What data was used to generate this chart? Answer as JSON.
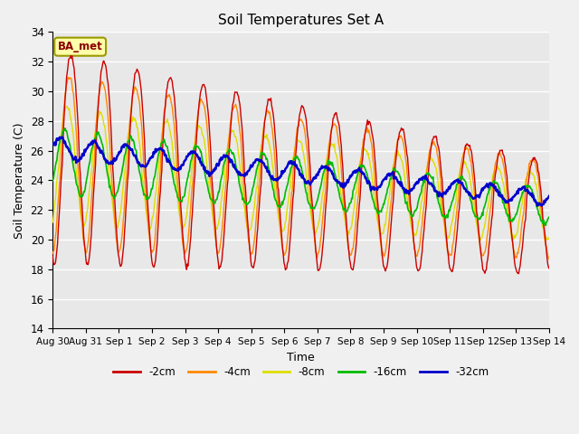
{
  "title": "Soil Temperatures Set A",
  "xlabel": "Time",
  "ylabel": "Soil Temperature (C)",
  "ylim": [
    14,
    34
  ],
  "legend_label": "BA_met",
  "plot_bg_color": "#e8e8e8",
  "fig_bg_color": "#f0f0f0",
  "line_colors": {
    "-2cm": "#cc0000",
    "-4cm": "#ff8800",
    "-8cm": "#dddd00",
    "-16cm": "#00bb00",
    "-32cm": "#0000cc"
  },
  "x_tick_labels": [
    "Aug 30",
    "Aug 31",
    "Sep 1",
    "Sep 2",
    "Sep 3",
    "Sep 4",
    "Sep 5",
    "Sep 6",
    "Sep 7",
    "Sep 8",
    "Sep 9",
    "Sep 10",
    "Sep 11",
    "Sep 12",
    "Sep 13",
    "Sep 14"
  ],
  "n_days": 15,
  "ppd": 48
}
